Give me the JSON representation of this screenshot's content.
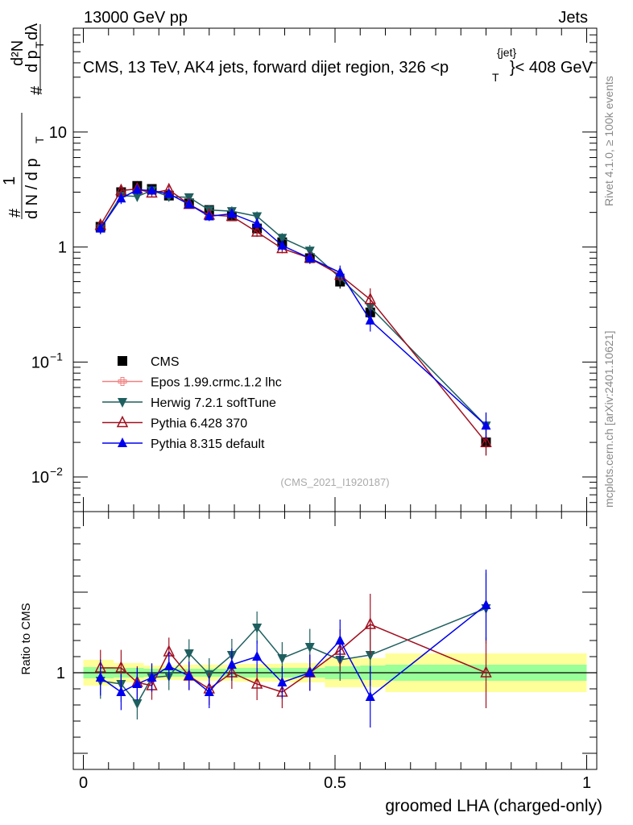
{
  "header": {
    "energy_label": "13000 GeV pp",
    "category_label": "Jets",
    "title_main": "CMS, 13 TeV, AK4 jets, forward dijet region, 326 <p",
    "title_sub": "T",
    "title_sup": "{jet}",
    "title_end": "}< 408 GeV"
  },
  "side": {
    "rivet": "Rivet 4.1.0, ≥ 100k events",
    "mcplots": "mcplots.cern.ch [arXiv:2401.10621]"
  },
  "analysis_tag": "(CMS_2021_I1920187)",
  "ylabel_top": {
    "hash1": "#",
    "one": "1",
    "dN": "d N / d p",
    "dN_sub": "T",
    "hash2": "#",
    "num": "d²N",
    "den": "d p",
    "den_sub": "T",
    "dlambda": "dλ"
  },
  "ylabel_bottom": "Ratio to CMS",
  "xlabel": "groomed LHA (charged-only)",
  "colors": {
    "cms": "#000000",
    "epos": "#f08080",
    "herwig": "#1f5f5f",
    "pythia6": "#a01020",
    "pythia8": "#0000ee",
    "band_yellow": "#ffff99",
    "band_green": "#99ff99"
  },
  "chart_data": {
    "type": "scatter",
    "x": [
      0.034,
      0.075,
      0.107,
      0.136,
      0.17,
      0.21,
      0.25,
      0.295,
      0.345,
      0.395,
      0.45,
      0.51,
      0.57,
      0.8
    ],
    "upper": {
      "yscale": "log",
      "ylim": [
        0.005,
        80
      ],
      "yticks": [
        {
          "value": 0.01,
          "label": "10",
          "sup": "−2"
        },
        {
          "value": 0.1,
          "label": "10",
          "sup": "−1"
        },
        {
          "value": 1,
          "label": "1",
          "sup": ""
        },
        {
          "value": 10,
          "label": "10",
          "sup": ""
        }
      ],
      "series": [
        {
          "name": "CMS",
          "key": "cms",
          "marker": "square",
          "values": [
            1.5,
            3.0,
            3.4,
            3.2,
            2.8,
            2.4,
            2.1,
            1.85,
            1.45,
            1.1,
            0.8,
            0.5,
            0.27,
            0.02
          ]
        },
        {
          "name": "Epos 1.99.crmc.1.2 lhc",
          "key": "epos",
          "marker": "cross",
          "legend_only": true,
          "values": []
        },
        {
          "name": "Herwig 7.2.1 softTune",
          "key": "herwig",
          "marker": "triangle-down",
          "values": [
            1.45,
            2.8,
            2.75,
            3.1,
            2.75,
            2.7,
            2.1,
            2.05,
            1.85,
            1.2,
            0.93,
            0.54,
            0.3,
            0.028
          ]
        },
        {
          "name": "Pythia 6.428 370",
          "key": "pythia6",
          "marker": "triangle-up-open",
          "values": [
            1.55,
            3.1,
            3.2,
            2.95,
            3.15,
            2.35,
            1.9,
            1.85,
            1.35,
            0.97,
            0.8,
            0.57,
            0.35,
            0.02
          ]
        },
        {
          "name": "Pythia 8.315 default",
          "key": "pythia8",
          "marker": "triangle-up",
          "values": [
            1.45,
            2.65,
            3.15,
            3.1,
            2.9,
            2.35,
            1.85,
            1.95,
            1.6,
            1.03,
            0.8,
            0.6,
            0.23,
            0.028
          ]
        }
      ]
    },
    "lower": {
      "ylim": [
        0.4,
        2.0
      ],
      "yticks": [
        {
          "value": 1,
          "label": "1"
        }
      ],
      "xlim": [
        -0.02,
        1.02
      ],
      "xticks": [
        {
          "value": 0,
          "label": "0"
        },
        {
          "value": 0.5,
          "label": "0.5"
        },
        {
          "value": 1,
          "label": "1"
        }
      ],
      "series": [
        {
          "key": "herwig",
          "marker": "triangle-down",
          "values": [
            0.95,
            0.93,
            0.81,
            0.97,
            0.98,
            1.12,
            0.99,
            1.11,
            1.28,
            1.09,
            1.16,
            1.08,
            1.11,
            1.4
          ]
        },
        {
          "key": "pythia6",
          "marker": "triangle-up-open",
          "values": [
            1.03,
            1.03,
            0.94,
            0.92,
            1.13,
            0.98,
            0.9,
            1.0,
            0.93,
            0.88,
            1.0,
            1.14,
            1.3,
            1.0
          ]
        },
        {
          "key": "pythia8",
          "marker": "triangle-up",
          "values": [
            0.97,
            0.88,
            0.93,
            0.97,
            1.04,
            0.98,
            0.88,
            1.05,
            1.1,
            0.94,
            1.0,
            1.2,
            0.85,
            1.42
          ]
        }
      ]
    }
  }
}
